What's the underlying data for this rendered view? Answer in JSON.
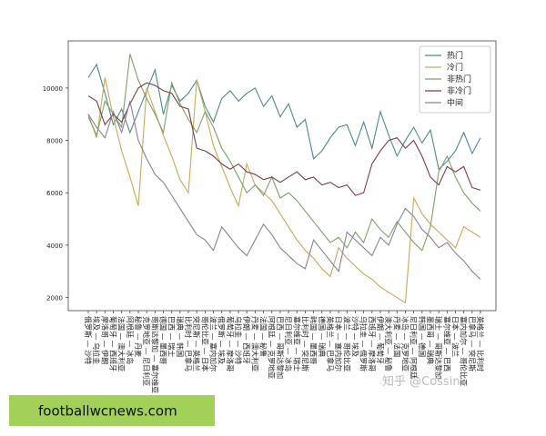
{
  "chart_data": {
    "type": "line",
    "categories": [
      "俄罗斯 — 沙特",
      "埃及 — 乌拉圭",
      "摩洛哥 — 伊朗",
      "葡萄牙 — 西班牙",
      "法国 — 澳大利亚",
      "阿根廷 — 冰岛",
      "秘鲁 — 丹麦",
      "克罗地亚 — 尼日利亚",
      "哥斯达黎加 — 塞尔维亚",
      "德国 — 墨西哥",
      "巴西 — 瑞士",
      "瑞典 — 韩国",
      "比利时 — 巴拿马",
      "突尼斯 — 英格兰",
      "哥伦比亚 — 日本",
      "波兰 — 塞内加尔",
      "俄罗斯 — 埃及",
      "葡萄牙 — 摩洛哥",
      "乌拉圭 — 沙特",
      "伊朗 — 西班牙",
      "丹麦 — 澳大利亚",
      "法国 — 秘鲁",
      "阿根廷 — 克罗地亚",
      "巴西 — 哥斯达黎加",
      "尼日利亚 — 冰岛",
      "塞尔维亚 — 瑞士",
      "比利时 — 突尼斯",
      "韩国 — 墨西哥",
      "德国 — 瑞典",
      "英格兰 — 巴拿马",
      "日本 — 塞内加尔",
      "波兰 — 哥伦比亚",
      "沙特 — 埃及",
      "乌拉圭 — 俄罗斯",
      "西班牙 — 摩洛哥",
      "伊朗 — 葡萄牙",
      "澳大利亚 — 秘鲁",
      "丹麦 — 法国",
      "冰岛 — 克罗地亚",
      "尼日利亚 — 阿根廷",
      "韩国 — 德国",
      "墨西哥 — 瑞典",
      "瑞士 — 哥斯达黎加",
      "塞尔维亚 — 巴西",
      "日本 — 波兰",
      "塞内加尔 — 哥伦比亚",
      "巴拿马 — 突尼斯",
      "英格兰 — 比利时"
    ],
    "series": [
      {
        "name": "热门",
        "color": "#4f8a8b",
        "values": [
          10400,
          10900,
          9800,
          8600,
          9200,
          8300,
          9100,
          9900,
          10700,
          9000,
          10100,
          9500,
          9800,
          10300,
          9300,
          8700,
          9600,
          9900,
          9500,
          9800,
          10000,
          9300,
          9700,
          8900,
          9400,
          8500,
          8800,
          7300,
          7600,
          8100,
          8500,
          8600,
          7800,
          8700,
          7700,
          9100,
          8200,
          7400,
          8000,
          8500,
          7900,
          8400,
          6900,
          7200,
          7600,
          8300,
          7500,
          8100
        ]
      },
      {
        "name": "冷门",
        "color": "#c9a95a",
        "values": [
          9000,
          8100,
          10400,
          8900,
          7600,
          6600,
          5500,
          10000,
          9100,
          8200,
          7400,
          6500,
          6000,
          10300,
          9100,
          7800,
          7000,
          6200,
          5500,
          7100,
          6300,
          6000,
          5700,
          5200,
          4700,
          4200,
          3800,
          3500,
          3100,
          2800,
          3900,
          3500,
          3200,
          2900,
          2700,
          2400,
          2200,
          2000,
          1800,
          5800,
          5200,
          4800,
          4500,
          4200,
          3900,
          4700,
          4500,
          4300
        ]
      },
      {
        "name": "非热门",
        "color": "#7ea06a",
        "values": [
          8900,
          8200,
          9500,
          9000,
          8500,
          11300,
          10300,
          9600,
          9000,
          8300,
          10200,
          9400,
          8800,
          8300,
          9100,
          8500,
          7700,
          7200,
          6600,
          6000,
          6300,
          5900,
          6600,
          5800,
          6000,
          5700,
          5300,
          4900,
          4500,
          4100,
          4300,
          3900,
          4500,
          4100,
          5000,
          4600,
          4300,
          4900,
          4500,
          4100,
          3800,
          4700,
          6800,
          7400,
          6600,
          6000,
          5600,
          5300
        ]
      },
      {
        "name": "非冷门",
        "color": "#7d3b48",
        "values": [
          9700,
          9500,
          8600,
          9000,
          8700,
          9400,
          10000,
          10200,
          10100,
          9900,
          9800,
          9300,
          9200,
          7700,
          7600,
          7400,
          7100,
          6900,
          7100,
          6800,
          6700,
          6500,
          6600,
          6400,
          6600,
          6800,
          6500,
          6600,
          6300,
          6400,
          6200,
          6300,
          5900,
          6000,
          7100,
          7600,
          8000,
          8100,
          7700,
          8000,
          7400,
          6600,
          6300,
          7000,
          6800,
          7000,
          6200,
          6100
        ]
      },
      {
        "name": "中间",
        "color": "#8c8098",
        "values": [
          9000,
          8500,
          8100,
          9100,
          8300,
          9500,
          8000,
          7300,
          6700,
          6400,
          5900,
          5400,
          4900,
          4400,
          4200,
          3800,
          4700,
          4300,
          3900,
          3600,
          4200,
          4800,
          4400,
          3900,
          3600,
          3300,
          3100,
          4200,
          3800,
          3400,
          3000,
          4500,
          4200,
          3900,
          3600,
          4300,
          4000,
          4800,
          5400,
          5100,
          4600,
          4300,
          3900,
          4100,
          3700,
          3400,
          3000,
          2700
        ]
      }
    ],
    "ylim": [
      1500,
      11800
    ],
    "yticks": [
      2000,
      4000,
      6000,
      8000,
      10000
    ],
    "grid": false,
    "legend": "upper right"
  },
  "watermark": "知乎 @Cossin",
  "banner": "footballwcnews.com"
}
